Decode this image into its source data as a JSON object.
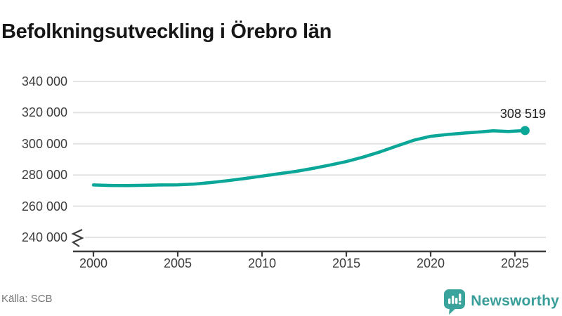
{
  "title": "Befolkningsutveckling i Örebro län",
  "source": "Källa: SCB",
  "branding": {
    "name": "Newsworthy",
    "logo_icon": "bar-chart-speech-bubble-icon",
    "color": "#399e99"
  },
  "colors": {
    "line": "#0aa799",
    "grid": "#e3e3e3",
    "axis": "#3c3c3c",
    "tick_text": "#3c3c3c",
    "title_text": "#161616",
    "source_text": "#757575"
  },
  "chart_data": {
    "type": "line",
    "title": "Befolkningsutveckling i Örebro län",
    "xlabel": "",
    "ylabel": "",
    "grid": "horizontal",
    "legend": false,
    "axis_break": true,
    "break_value": 240000,
    "ylim_display": [
      240000,
      348000
    ],
    "xlim_display": [
      1998.8,
      2026.8
    ],
    "x": [
      2000,
      2001,
      2002,
      2003,
      2004,
      2005,
      2006,
      2007,
      2008,
      2009,
      2010,
      2011,
      2012,
      2013,
      2014,
      2015,
      2016,
      2017,
      2018,
      2019,
      2020,
      2021,
      2022,
      2023,
      2023.7,
      2024.6,
      2025.6
    ],
    "y": [
      273600,
      273300,
      273200,
      273400,
      273600,
      273700,
      274200,
      275200,
      276400,
      277800,
      279300,
      280800,
      282300,
      284200,
      286300,
      288600,
      291500,
      294800,
      298600,
      302300,
      304800,
      306000,
      306900,
      307700,
      308350,
      307950,
      308519
    ],
    "end_value": 308519,
    "end_label": "308 519",
    "y_ticks": [
      {
        "label": "340 000",
        "value": 340000
      },
      {
        "label": "320 000",
        "value": 320000
      },
      {
        "label": "300 000",
        "value": 300000
      },
      {
        "label": "280 000",
        "value": 280000
      },
      {
        "label": "260 000",
        "value": 260000
      },
      {
        "label": "240 000",
        "value": 240000
      }
    ],
    "x_ticks": [
      {
        "label": "2000",
        "value": 2000
      },
      {
        "label": "2005",
        "value": 2005
      },
      {
        "label": "2010",
        "value": 2010
      },
      {
        "label": "2015",
        "value": 2015
      },
      {
        "label": "2020",
        "value": 2020
      },
      {
        "label": "2025",
        "value": 2025
      }
    ]
  }
}
